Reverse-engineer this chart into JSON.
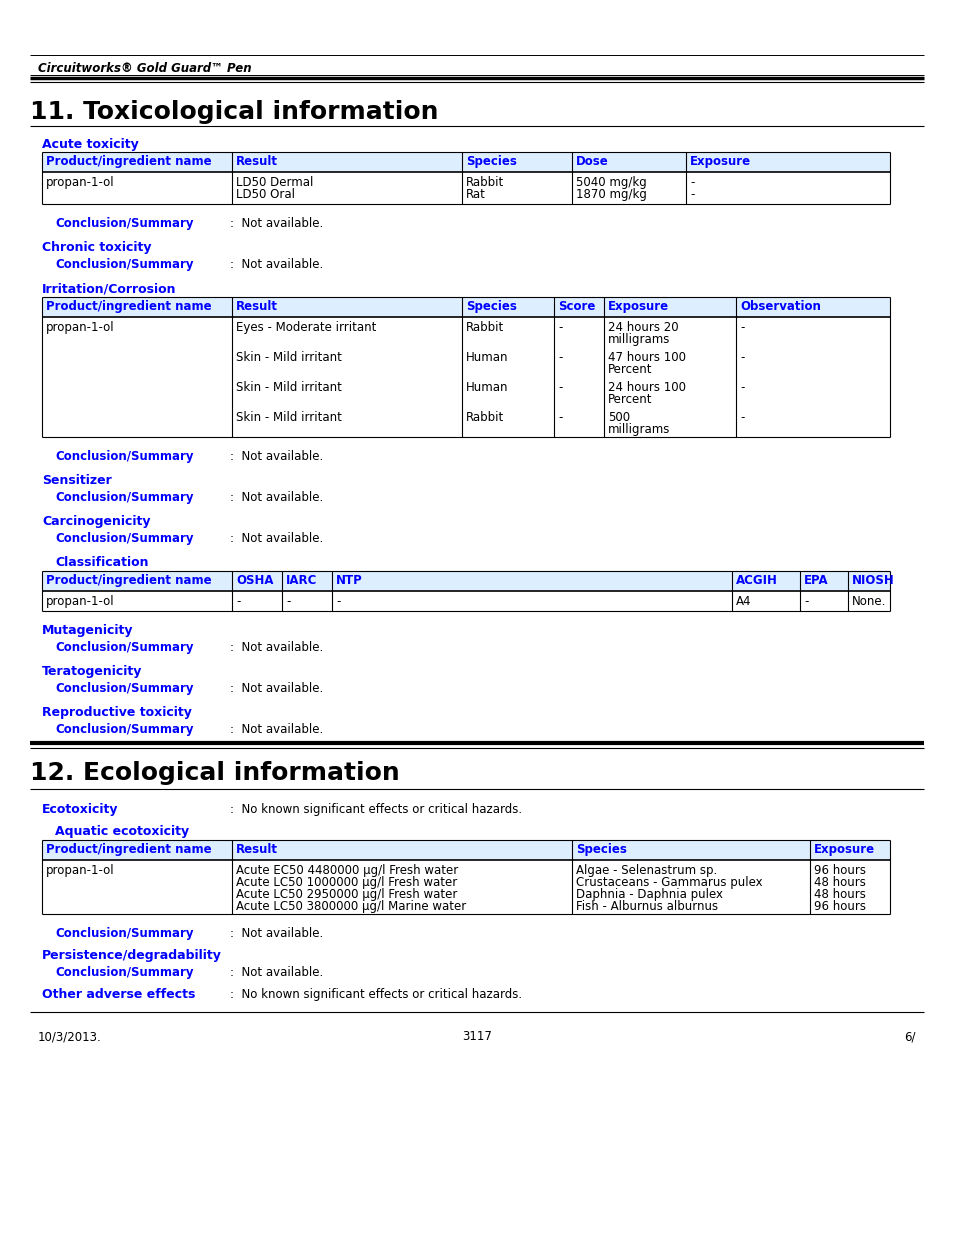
{
  "header_italic": "Circuitworks® Gold Guard™ Pen",
  "section11_title": "11. Toxicological information",
  "section12_title": "12. Ecological information",
  "blue": "#0000FF",
  "black": "#000000",
  "white": "#FFFFFF",
  "footer_left": "10/3/2013.",
  "footer_center": "3117",
  "footer_right": "6/"
}
